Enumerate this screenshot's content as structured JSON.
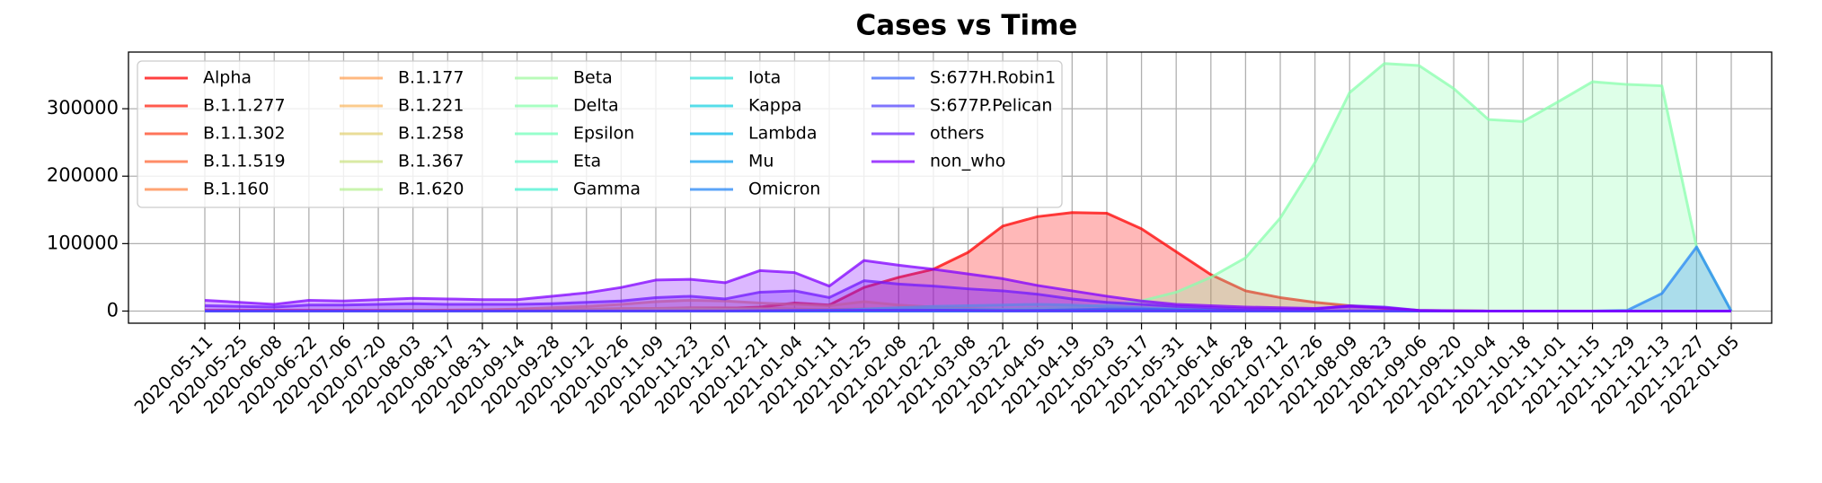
{
  "chart_data": {
    "type": "area",
    "title": "Cases vs Time",
    "categories": [
      "2020-05-11",
      "2020-05-25",
      "2020-06-08",
      "2020-06-22",
      "2020-07-06",
      "2020-07-20",
      "2020-08-03",
      "2020-08-17",
      "2020-08-31",
      "2020-09-14",
      "2020-09-28",
      "2020-10-12",
      "2020-10-26",
      "2020-11-09",
      "2020-11-23",
      "2020-12-07",
      "2020-12-21",
      "2021-01-04",
      "2021-01-11",
      "2021-01-25",
      "2021-02-08",
      "2021-02-22",
      "2021-03-08",
      "2021-03-22",
      "2021-04-05",
      "2021-04-19",
      "2021-05-03",
      "2021-05-17",
      "2021-05-31",
      "2021-06-14",
      "2021-06-28",
      "2021-07-12",
      "2021-07-26",
      "2021-08-09",
      "2021-08-23",
      "2021-09-06",
      "2021-09-20",
      "2021-10-04",
      "2021-10-18",
      "2021-11-01",
      "2021-11-15",
      "2021-11-29",
      "2021-12-13",
      "2021-12-27",
      "2022-01-05"
    ],
    "ylim": [
      -18000,
      384000
    ],
    "yticks": [
      0,
      100000,
      200000,
      300000
    ],
    "grid": true,
    "legend": "upper left",
    "series": [
      {
        "name": "Alpha",
        "color": "#ff0000",
        "values": [
          1000,
          1000,
          1000,
          1000,
          1000,
          1000,
          1000,
          1000,
          1000,
          1000,
          1000,
          1000,
          1500,
          2000,
          3000,
          4000,
          6000,
          12000,
          9000,
          35000,
          50000,
          62000,
          87000,
          126000,
          140000,
          146000,
          145000,
          122000,
          88000,
          54000,
          30000,
          20000,
          13000,
          8000,
          4000,
          1000,
          500,
          0,
          0,
          0,
          0,
          0,
          0,
          0,
          0
        ]
      },
      {
        "name": "B.1.1.277",
        "color": "#ff2311",
        "values": [
          0,
          0,
          0,
          0,
          0,
          0,
          500,
          1000,
          1500,
          2000,
          2000,
          1500,
          1000,
          500,
          500,
          0,
          0,
          0,
          0,
          0,
          0,
          0,
          0,
          0,
          0,
          0,
          0,
          0,
          0,
          0,
          0,
          0,
          0,
          0,
          0,
          0,
          0,
          0,
          0,
          0,
          0,
          0,
          0,
          0,
          0
        ]
      },
      {
        "name": "B.1.1.302",
        "color": "#ff4523",
        "values": [
          0,
          0,
          0,
          0,
          0,
          0,
          0,
          0,
          500,
          1000,
          1000,
          1500,
          1500,
          1000,
          500,
          500,
          0,
          0,
          0,
          0,
          0,
          0,
          0,
          0,
          0,
          0,
          0,
          0,
          0,
          0,
          0,
          0,
          0,
          0,
          0,
          0,
          0,
          0,
          0,
          0,
          0,
          0,
          0,
          0,
          0
        ]
      },
      {
        "name": "B.1.1.519",
        "color": "#ff6634",
        "values": [
          0,
          0,
          0,
          0,
          0,
          0,
          0,
          0,
          0,
          0,
          0,
          0,
          0,
          0,
          500,
          1000,
          1500,
          2000,
          2500,
          3000,
          3000,
          2500,
          2000,
          1500,
          1000,
          500,
          500,
          500,
          0,
          0,
          0,
          0,
          0,
          0,
          0,
          0,
          0,
          0,
          0,
          0,
          0,
          0,
          0,
          0,
          0
        ]
      },
      {
        "name": "B.1.160",
        "color": "#ff8545",
        "values": [
          0,
          0,
          0,
          0,
          0,
          0,
          0,
          0,
          0,
          0,
          1000,
          2000,
          3000,
          4000,
          5000,
          5000,
          4000,
          3000,
          2000,
          1000,
          0,
          0,
          0,
          0,
          0,
          0,
          0,
          0,
          0,
          0,
          0,
          0,
          0,
          0,
          0,
          0,
          0,
          0,
          0,
          0,
          0,
          0,
          0,
          0,
          0
        ]
      },
      {
        "name": "B.1.177",
        "color": "#ffa155",
        "values": [
          0,
          0,
          0,
          0,
          0,
          500,
          1000,
          1500,
          2000,
          3000,
          5000,
          7000,
          10000,
          14000,
          16000,
          15000,
          12000,
          10000,
          8000,
          14000,
          9000,
          6000,
          4000,
          2000,
          1000,
          0,
          0,
          0,
          0,
          0,
          0,
          0,
          0,
          0,
          0,
          0,
          0,
          0,
          0,
          0,
          0,
          0,
          0,
          0,
          0
        ]
      },
      {
        "name": "B.1.221",
        "color": "#f9ba66",
        "values": [
          0,
          0,
          0,
          0,
          0,
          0,
          0,
          0,
          500,
          1000,
          2000,
          3000,
          4000,
          4000,
          3000,
          2000,
          1000,
          500,
          0,
          0,
          0,
          0,
          0,
          0,
          0,
          0,
          0,
          0,
          0,
          0,
          0,
          0,
          0,
          0,
          0,
          0,
          0,
          0,
          0,
          0,
          0,
          0,
          0,
          0,
          0
        ]
      },
      {
        "name": "B.1.258",
        "color": "#e3d175",
        "values": [
          0,
          0,
          0,
          0,
          0,
          0,
          0,
          0,
          0,
          0,
          0,
          0,
          1000,
          2000,
          3000,
          3000,
          3000,
          2000,
          2000,
          1000,
          500,
          0,
          0,
          0,
          0,
          0,
          0,
          0,
          0,
          0,
          0,
          0,
          0,
          0,
          0,
          0,
          0,
          0,
          0,
          0,
          0,
          0,
          0,
          0,
          0
        ]
      },
      {
        "name": "B.1.367",
        "color": "#cce385",
        "values": [
          0,
          0,
          0,
          0,
          0,
          0,
          0,
          0,
          0,
          0,
          500,
          1000,
          1000,
          1000,
          500,
          500,
          500,
          0,
          0,
          0,
          0,
          0,
          0,
          0,
          0,
          0,
          0,
          0,
          0,
          0,
          0,
          0,
          0,
          0,
          0,
          0,
          0,
          0,
          0,
          0,
          0,
          0,
          0,
          0,
          0
        ]
      },
      {
        "name": "B.1.620",
        "color": "#b7f093",
        "values": [
          0,
          0,
          0,
          0,
          0,
          0,
          0,
          0,
          0,
          0,
          0,
          0,
          0,
          0,
          0,
          0,
          0,
          0,
          0,
          0,
          0,
          0,
          500,
          1000,
          1500,
          1500,
          1000,
          500,
          500,
          0,
          0,
          0,
          0,
          0,
          0,
          0,
          0,
          0,
          0,
          0,
          0,
          0,
          0,
          0,
          0
        ]
      },
      {
        "name": "Beta",
        "color": "#a1faa1",
        "values": [
          0,
          0,
          0,
          0,
          0,
          0,
          0,
          0,
          0,
          0,
          0,
          0,
          0,
          0,
          0,
          0,
          500,
          1000,
          1500,
          2000,
          2500,
          3000,
          3000,
          2500,
          2000,
          1500,
          1000,
          500,
          500,
          0,
          0,
          0,
          0,
          0,
          0,
          0,
          0,
          0,
          0,
          0,
          0,
          0,
          0,
          0,
          0
        ]
      },
      {
        "name": "Delta",
        "color": "#8affae",
        "values": [
          0,
          0,
          0,
          0,
          0,
          0,
          0,
          0,
          0,
          0,
          0,
          0,
          0,
          0,
          0,
          0,
          0,
          0,
          0,
          500,
          1000,
          1000,
          1500,
          2000,
          4000,
          6000,
          9000,
          15000,
          28000,
          50000,
          79000,
          138000,
          220000,
          324000,
          367000,
          364000,
          330000,
          284000,
          281000,
          310000,
          340000,
          336000,
          334000,
          95000,
          0
        ]
      },
      {
        "name": "Epsilon",
        "color": "#74ffbb",
        "values": [
          0,
          0,
          0,
          0,
          0,
          0,
          0,
          0,
          0,
          0,
          0,
          0,
          0,
          0,
          0,
          0,
          0,
          500,
          1000,
          2000,
          3000,
          3000,
          2000,
          1000,
          500,
          0,
          0,
          0,
          0,
          0,
          0,
          0,
          0,
          0,
          0,
          0,
          0,
          0,
          0,
          0,
          0,
          0,
          0,
          0,
          0
        ]
      },
      {
        "name": "Eta",
        "color": "#5efac6",
        "values": [
          0,
          0,
          0,
          0,
          0,
          0,
          0,
          0,
          0,
          0,
          0,
          0,
          0,
          0,
          0,
          0,
          0,
          0,
          0,
          0,
          500,
          1000,
          1000,
          1000,
          500,
          500,
          500,
          0,
          0,
          0,
          0,
          0,
          0,
          0,
          0,
          0,
          0,
          0,
          0,
          0,
          0,
          0,
          0,
          0,
          0
        ]
      },
      {
        "name": "Gamma",
        "color": "#48f0d0",
        "values": [
          0,
          0,
          0,
          0,
          0,
          0,
          0,
          0,
          0,
          0,
          0,
          0,
          0,
          0,
          0,
          0,
          0,
          0,
          1000,
          3000,
          5000,
          7000,
          8000,
          9000,
          10000,
          9000,
          7000,
          5000,
          3000,
          2000,
          1000,
          500,
          0,
          0,
          0,
          0,
          0,
          0,
          0,
          0,
          0,
          0,
          0,
          0,
          0
        ]
      },
      {
        "name": "Iota",
        "color": "#32e3da",
        "values": [
          0,
          0,
          0,
          0,
          0,
          0,
          0,
          0,
          0,
          0,
          0,
          0,
          0,
          0,
          0,
          0,
          0,
          0,
          0,
          500,
          1000,
          1500,
          2000,
          1500,
          1000,
          500,
          500,
          0,
          0,
          0,
          0,
          0,
          0,
          0,
          0,
          0,
          0,
          0,
          0,
          0,
          0,
          0,
          0,
          0,
          0
        ]
      },
      {
        "name": "Kappa",
        "color": "#1cd1e2",
        "values": [
          0,
          0,
          0,
          0,
          0,
          0,
          0,
          0,
          0,
          0,
          0,
          0,
          0,
          0,
          0,
          0,
          0,
          0,
          0,
          0,
          0,
          0,
          0,
          0,
          0,
          500,
          1000,
          1000,
          500,
          500,
          500,
          0,
          0,
          0,
          0,
          0,
          0,
          0,
          0,
          0,
          0,
          0,
          0,
          0,
          0
        ]
      },
      {
        "name": "Lambda",
        "color": "#06baea",
        "values": [
          0,
          0,
          0,
          0,
          0,
          0,
          0,
          0,
          0,
          0,
          0,
          0,
          0,
          0,
          0,
          0,
          0,
          0,
          0,
          0,
          0,
          0,
          0,
          0,
          500,
          1000,
          1500,
          1500,
          1000,
          500,
          0,
          0,
          0,
          0,
          0,
          0,
          0,
          0,
          0,
          0,
          0,
          0,
          0,
          0,
          0
        ]
      },
      {
        "name": "Mu",
        "color": "#10a1f0",
        "values": [
          0,
          0,
          0,
          0,
          0,
          0,
          0,
          0,
          0,
          0,
          0,
          0,
          0,
          0,
          0,
          0,
          0,
          0,
          0,
          0,
          0,
          0,
          0,
          500,
          1000,
          2000,
          3000,
          3000,
          2000,
          1000,
          500,
          0,
          0,
          0,
          0,
          0,
          0,
          0,
          0,
          0,
          0,
          0,
          0,
          0,
          0
        ]
      },
      {
        "name": "Omicron",
        "color": "#2685f6",
        "values": [
          0,
          0,
          0,
          0,
          0,
          0,
          0,
          0,
          0,
          0,
          0,
          0,
          0,
          0,
          0,
          0,
          0,
          0,
          0,
          0,
          0,
          0,
          0,
          0,
          0,
          0,
          0,
          0,
          0,
          0,
          0,
          0,
          0,
          0,
          0,
          0,
          0,
          0,
          0,
          0,
          0,
          1000,
          26000,
          95000,
          0
        ]
      },
      {
        "name": "S:677H.Robin1",
        "color": "#3c66f9",
        "values": [
          0,
          0,
          0,
          0,
          0,
          0,
          0,
          0,
          0,
          0,
          0,
          0,
          0,
          0,
          0,
          0,
          0,
          0,
          500,
          1000,
          1500,
          1500,
          1000,
          500,
          500,
          0,
          0,
          0,
          0,
          0,
          0,
          0,
          0,
          0,
          0,
          0,
          0,
          0,
          0,
          0,
          0,
          0,
          0,
          0,
          0
        ]
      },
      {
        "name": "S:677P.Pelican",
        "color": "#5445fc",
        "values": [
          0,
          0,
          0,
          0,
          0,
          0,
          0,
          0,
          0,
          0,
          0,
          0,
          0,
          0,
          0,
          0,
          500,
          1000,
          1000,
          1000,
          500,
          500,
          500,
          0,
          0,
          0,
          0,
          0,
          0,
          0,
          0,
          0,
          0,
          0,
          0,
          0,
          0,
          0,
          0,
          0,
          0,
          0,
          0,
          0,
          0
        ]
      },
      {
        "name": "others",
        "color": "#6a23fe",
        "values": [
          8000,
          7000,
          6000,
          9000,
          9000,
          10000,
          11000,
          10000,
          10000,
          10000,
          11000,
          13000,
          15000,
          20000,
          22000,
          18000,
          28000,
          30000,
          20000,
          45000,
          40000,
          37000,
          33000,
          30000,
          25000,
          18000,
          13000,
          10000,
          7000,
          5000,
          3000,
          3000,
          3000,
          8000,
          6000,
          1000,
          0,
          0,
          0,
          0,
          0,
          0,
          0,
          0,
          0
        ]
      },
      {
        "name": "non_who",
        "color": "#8000ff",
        "values": [
          16000,
          13000,
          10000,
          16000,
          15000,
          17000,
          19000,
          18000,
          17000,
          17000,
          22000,
          27000,
          35000,
          46000,
          47000,
          42000,
          60000,
          57000,
          37000,
          75000,
          68000,
          62000,
          55000,
          48000,
          38000,
          30000,
          22000,
          15000,
          10000,
          8000,
          6000,
          5000,
          4000,
          7000,
          5000,
          1000,
          500,
          0,
          0,
          0,
          0,
          0,
          0,
          0,
          0
        ]
      }
    ]
  }
}
